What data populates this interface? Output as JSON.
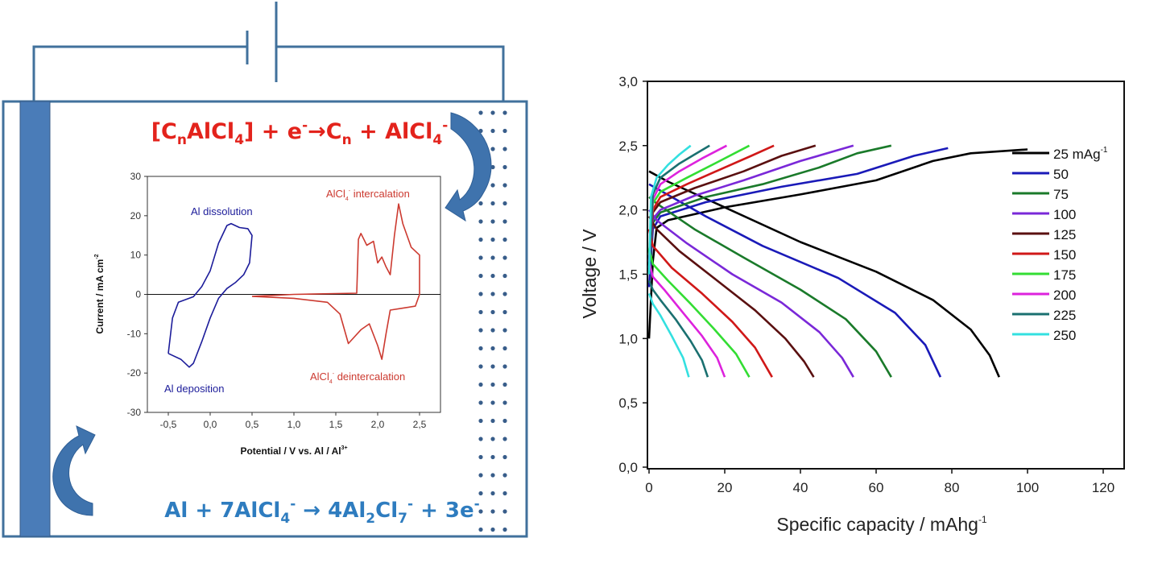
{
  "diagram": {
    "colors": {
      "frame": "#41719c",
      "electrode": "#4a7cb8",
      "cathode_eq": "#e3231c",
      "anode_eq": "#2e7cbf",
      "dots": "#385d8a"
    },
    "cathode_equation": [
      {
        "t": "[C",
        "s": ""
      },
      {
        "t": "n",
        "s": "sub"
      },
      {
        "t": "AlCl",
        "s": ""
      },
      {
        "t": "4",
        "s": "sub"
      },
      {
        "t": "] + e",
        "s": ""
      },
      {
        "t": "-",
        "s": "sup"
      },
      {
        "t": "→C",
        "s": ""
      },
      {
        "t": "n",
        "s": "sub"
      },
      {
        "t": " + AlCl",
        "s": ""
      },
      {
        "t": "4",
        "s": "sub"
      },
      {
        "t": "-",
        "s": "sup"
      }
    ],
    "anode_equation": [
      {
        "t": "Al + 7AlCl",
        "s": ""
      },
      {
        "t": "4",
        "s": "sub"
      },
      {
        "t": "-",
        "s": "sup"
      },
      {
        "t": " → 4Al",
        "s": ""
      },
      {
        "t": "2",
        "s": "sub"
      },
      {
        "t": "Cl",
        "s": ""
      },
      {
        "t": "7",
        "s": "sub"
      },
      {
        "t": "-",
        "s": "sup"
      },
      {
        "t": " + 3e",
        "s": ""
      },
      {
        "t": "-",
        "s": "sup"
      }
    ]
  },
  "chart_data": [
    {
      "type": "line",
      "title": "",
      "xlabel": "Potential / V vs. Al / Al",
      "xlabel_sup": "3+",
      "ylabel": "Current / mA cm",
      "ylabel_sup": "-2",
      "xlim": [
        -0.75,
        2.75
      ],
      "ylim": [
        -30,
        30
      ],
      "xticks": [
        "-0,5",
        "0,0",
        "0,5",
        "1,0",
        "1,5",
        "2,0",
        "2,5"
      ],
      "xtick_values": [
        -0.5,
        0,
        0.5,
        1.0,
        1.5,
        2.0,
        2.5
      ],
      "yticks": [
        "30",
        "20",
        "10",
        "0",
        "-10",
        "-20",
        "-30"
      ],
      "ytick_values": [
        30,
        20,
        10,
        0,
        -10,
        -20,
        -30
      ],
      "annotations": {
        "dissolution": "Al dissolution",
        "deposition": "Al deposition",
        "intercalation": {
          "a": "AlCl",
          "sub": "4",
          "sup": "-",
          "b": " intercalation"
        },
        "deintercalation": {
          "a": "AlCl",
          "sub": "4",
          "sup": "-",
          "b": " deintercalation"
        }
      },
      "series": [
        {
          "color": "#1c1c9a",
          "points": [
            [
              -0.5,
              -15
            ],
            [
              -0.45,
              -6
            ],
            [
              -0.38,
              -2
            ],
            [
              -0.2,
              -0.6
            ],
            [
              -0.1,
              2
            ],
            [
              0.0,
              6
            ],
            [
              0.1,
              13
            ],
            [
              0.2,
              17.5
            ],
            [
              0.25,
              18
            ],
            [
              0.35,
              17
            ],
            [
              0.45,
              16.7
            ],
            [
              0.5,
              15
            ],
            [
              0.47,
              8
            ],
            [
              0.4,
              5
            ],
            [
              0.3,
              3
            ],
            [
              0.2,
              1.5
            ],
            [
              0.1,
              -1
            ],
            [
              0.0,
              -6
            ],
            [
              -0.1,
              -12
            ],
            [
              -0.2,
              -17.5
            ],
            [
              -0.25,
              -18.5
            ],
            [
              -0.35,
              -16.5
            ],
            [
              -0.5,
              -15
            ]
          ]
        },
        {
          "color": "#cc3a30",
          "points": [
            [
              0.5,
              -0.5
            ],
            [
              1.0,
              0
            ],
            [
              1.75,
              0.3
            ],
            [
              1.77,
              14
            ],
            [
              1.8,
              15.5
            ],
            [
              1.87,
              12.5
            ],
            [
              1.95,
              13.5
            ],
            [
              2.0,
              8
            ],
            [
              2.05,
              9.5
            ],
            [
              2.1,
              7
            ],
            [
              2.15,
              5
            ],
            [
              2.2,
              15
            ],
            [
              2.25,
              23
            ],
            [
              2.3,
              18
            ],
            [
              2.4,
              12
            ],
            [
              2.5,
              10
            ],
            [
              2.5,
              0
            ],
            [
              2.45,
              -3
            ],
            [
              2.3,
              -3.5
            ],
            [
              2.15,
              -4
            ],
            [
              2.1,
              -10
            ],
            [
              2.05,
              -16.5
            ],
            [
              2.0,
              -13
            ],
            [
              1.9,
              -7.5
            ],
            [
              1.8,
              -9
            ],
            [
              1.65,
              -12.5
            ],
            [
              1.55,
              -5
            ],
            [
              1.4,
              -2
            ],
            [
              1.0,
              -1
            ],
            [
              0.5,
              -0.5
            ]
          ]
        }
      ]
    },
    {
      "type": "line",
      "title": "",
      "xlabel": "Specific capacity / mAhg",
      "xlabel_sup": "-1",
      "ylabel": "Voltage / V",
      "xlim": [
        0,
        125
      ],
      "ylim": [
        0,
        3.0
      ],
      "xticks": [
        "0",
        "20",
        "40",
        "60",
        "80",
        "100",
        "120"
      ],
      "xtick_values": [
        0,
        20,
        40,
        60,
        80,
        100,
        120
      ],
      "yticks": [
        "0,0",
        "0,5",
        "1,0",
        "1,5",
        "2,0",
        "2,5",
        "3,0"
      ],
      "ytick_values": [
        0,
        0.5,
        1.0,
        1.5,
        2.0,
        2.5,
        3.0
      ],
      "legend_position": "right",
      "legend_unit_sup": "-1",
      "series": [
        {
          "name": "25 mAg",
          "color": "#000000",
          "charge": [
            [
              0,
              1.0
            ],
            [
              1,
              1.6
            ],
            [
              2,
              1.86
            ],
            [
              5,
              1.92
            ],
            [
              20,
              2.02
            ],
            [
              40,
              2.12
            ],
            [
              60,
              2.23
            ],
            [
              75,
              2.38
            ],
            [
              85,
              2.44
            ],
            [
              100,
              2.47
            ]
          ],
          "discharge": [
            [
              0,
              2.3
            ],
            [
              5,
              2.22
            ],
            [
              20,
              2.02
            ],
            [
              40,
              1.75
            ],
            [
              60,
              1.52
            ],
            [
              75,
              1.3
            ],
            [
              85,
              1.07
            ],
            [
              90,
              0.87
            ],
            [
              92.5,
              0.7
            ]
          ]
        },
        {
          "name": "50",
          "color": "#1a1ab8",
          "charge": [
            [
              0,
              1.4
            ],
            [
              1,
              1.85
            ],
            [
              3,
              1.95
            ],
            [
              15,
              2.06
            ],
            [
              35,
              2.18
            ],
            [
              55,
              2.28
            ],
            [
              70,
              2.42
            ],
            [
              79,
              2.48
            ]
          ],
          "discharge": [
            [
              0,
              2.2
            ],
            [
              3,
              2.15
            ],
            [
              15,
              1.95
            ],
            [
              30,
              1.72
            ],
            [
              50,
              1.47
            ],
            [
              65,
              1.2
            ],
            [
              73,
              0.95
            ],
            [
              77,
              0.7
            ]
          ]
        },
        {
          "name": "75",
          "color": "#1a7a2a",
          "charge": [
            [
              0,
              1.5
            ],
            [
              1,
              1.9
            ],
            [
              3,
              1.98
            ],
            [
              15,
              2.1
            ],
            [
              30,
              2.2
            ],
            [
              45,
              2.33
            ],
            [
              55,
              2.44
            ],
            [
              64,
              2.5
            ]
          ],
          "discharge": [
            [
              0,
              2.1
            ],
            [
              2,
              2.05
            ],
            [
              12,
              1.85
            ],
            [
              25,
              1.63
            ],
            [
              40,
              1.38
            ],
            [
              52,
              1.15
            ],
            [
              60,
              0.9
            ],
            [
              64,
              0.7
            ]
          ]
        },
        {
          "name": "100",
          "color": "#7a28d8",
          "charge": [
            [
              0,
              1.55
            ],
            [
              1,
              1.93
            ],
            [
              3,
              2.0
            ],
            [
              12,
              2.11
            ],
            [
              25,
              2.23
            ],
            [
              40,
              2.38
            ],
            [
              54,
              2.5
            ]
          ],
          "discharge": [
            [
              0,
              2.0
            ],
            [
              2,
              1.92
            ],
            [
              10,
              1.74
            ],
            [
              22,
              1.5
            ],
            [
              35,
              1.28
            ],
            [
              45,
              1.05
            ],
            [
              51,
              0.85
            ],
            [
              54,
              0.7
            ]
          ]
        },
        {
          "name": "125",
          "color": "#5a1010",
          "charge": [
            [
              0,
              1.6
            ],
            [
              1,
              1.98
            ],
            [
              3,
              2.06
            ],
            [
              12,
              2.17
            ],
            [
              25,
              2.3
            ],
            [
              35,
              2.42
            ],
            [
              44,
              2.5
            ]
          ],
          "discharge": [
            [
              0,
              1.95
            ],
            [
              2,
              1.85
            ],
            [
              8,
              1.68
            ],
            [
              18,
              1.45
            ],
            [
              28,
              1.22
            ],
            [
              36,
              1.0
            ],
            [
              41,
              0.82
            ],
            [
              43.5,
              0.7
            ]
          ]
        },
        {
          "name": "150",
          "color": "#d01818",
          "charge": [
            [
              0,
              1.65
            ],
            [
              1,
              2.0
            ],
            [
              3,
              2.1
            ],
            [
              10,
              2.2
            ],
            [
              20,
              2.33
            ],
            [
              27,
              2.42
            ],
            [
              33,
              2.5
            ]
          ],
          "discharge": [
            [
              0,
              1.85
            ],
            [
              1,
              1.72
            ],
            [
              6,
              1.55
            ],
            [
              14,
              1.35
            ],
            [
              22,
              1.13
            ],
            [
              28,
              0.93
            ],
            [
              32.5,
              0.7
            ]
          ]
        },
        {
          "name": "175",
          "color": "#33dd33",
          "charge": [
            [
              0,
              1.65
            ],
            [
              1,
              2.05
            ],
            [
              3,
              2.14
            ],
            [
              10,
              2.25
            ],
            [
              18,
              2.37
            ],
            [
              26.5,
              2.5
            ]
          ],
          "discharge": [
            [
              0,
              1.7
            ],
            [
              1,
              1.58
            ],
            [
              5,
              1.45
            ],
            [
              11,
              1.27
            ],
            [
              17,
              1.08
            ],
            [
              23,
              0.88
            ],
            [
              26.5,
              0.7
            ]
          ]
        },
        {
          "name": "200",
          "color": "#dd22dd",
          "charge": [
            [
              0,
              1.6
            ],
            [
              1,
              2.08
            ],
            [
              3,
              2.2
            ],
            [
              8,
              2.3
            ],
            [
              14,
              2.4
            ],
            [
              20.5,
              2.5
            ]
          ],
          "discharge": [
            [
              0,
              1.6
            ],
            [
              1,
              1.48
            ],
            [
              4,
              1.38
            ],
            [
              9,
              1.2
            ],
            [
              14,
              1.02
            ],
            [
              18,
              0.85
            ],
            [
              20,
              0.7
            ]
          ]
        },
        {
          "name": "225",
          "color": "#1a7070",
          "charge": [
            [
              0,
              1.55
            ],
            [
              1,
              2.12
            ],
            [
              3,
              2.25
            ],
            [
              8,
              2.36
            ],
            [
              12,
              2.43
            ],
            [
              16,
              2.5
            ]
          ],
          "discharge": [
            [
              0,
              1.45
            ],
            [
              1,
              1.38
            ],
            [
              3,
              1.3
            ],
            [
              7,
              1.15
            ],
            [
              11,
              0.98
            ],
            [
              14,
              0.83
            ],
            [
              15.5,
              0.7
            ]
          ]
        },
        {
          "name": "250",
          "color": "#33e0e0",
          "charge": [
            [
              0,
              1.5
            ],
            [
              0.5,
              2.1
            ],
            [
              2,
              2.25
            ],
            [
              5,
              2.35
            ],
            [
              8,
              2.43
            ],
            [
              11,
              2.5
            ]
          ],
          "discharge": [
            [
              0,
              1.35
            ],
            [
              1,
              1.27
            ],
            [
              3,
              1.18
            ],
            [
              6,
              1.02
            ],
            [
              9,
              0.85
            ],
            [
              10.5,
              0.7
            ]
          ]
        }
      ]
    }
  ]
}
